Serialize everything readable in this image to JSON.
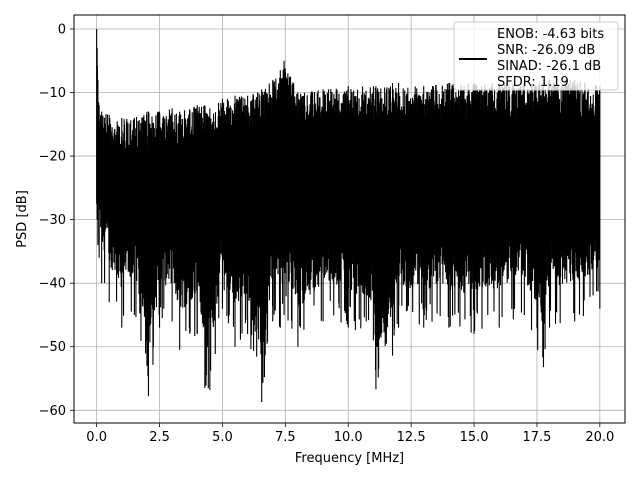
{
  "chart_data": {
    "type": "line",
    "title": "",
    "xlabel": "Frequency [MHz]",
    "ylabel": "PSD [dB]",
    "xlim": [
      -0.9,
      21.0
    ],
    "ylim": [
      -62,
      2.2
    ],
    "xticks": [
      0.0,
      2.5,
      5.0,
      7.5,
      10.0,
      12.5,
      15.0,
      17.5,
      20.0
    ],
    "xtick_labels": [
      "0.0",
      "2.5",
      "5.0",
      "7.5",
      "10.0",
      "12.5",
      "15.0",
      "17.5",
      "20.0"
    ],
    "yticks": [
      0,
      -10,
      -20,
      -30,
      -40,
      -50,
      -60
    ],
    "ytick_labels": [
      "0",
      "−10",
      "−20",
      "−30",
      "−40",
      "−50",
      "−60"
    ],
    "grid": true,
    "legend_position": "upper right",
    "line_color": "#000000",
    "legend": [
      "ENOB: -4.63 bits",
      "SNR: -26.09 dB",
      "SINAD: -26.1 dB",
      "SFDR: 1.19"
    ],
    "series": [
      {
        "color": "#000000",
        "x": [
          0.0,
          0.02,
          0.05,
          0.1,
          0.2,
          0.5,
          1.0,
          1.5,
          2.0,
          2.06,
          2.5,
          3.0,
          3.3,
          4.0,
          4.3,
          4.5,
          5.0,
          5.5,
          6.0,
          6.56,
          7.0,
          7.3,
          7.45,
          8.0,
          9.0,
          10.0,
          11.0,
          11.1,
          11.76,
          12.0,
          13.0,
          14.0,
          15.0,
          16.0,
          17.0,
          17.76,
          18.0,
          19.0,
          20.0
        ],
        "y_max": [
          0.0,
          -3.0,
          -8.0,
          -12.0,
          -13.0,
          -13.5,
          -14.0,
          -14.0,
          -13.0,
          -13.0,
          -13.0,
          -12.5,
          -13.0,
          -12.0,
          -12.0,
          -12.5,
          -11.0,
          -10.5,
          -10.5,
          -9.5,
          -8.0,
          -6.5,
          -5.0,
          -10.0,
          -9.5,
          -9.0,
          -9.0,
          -9.0,
          -8.5,
          -8.5,
          -9.0,
          -8.5,
          -8.5,
          -8.5,
          -8.5,
          -8.0,
          -8.0,
          -8.0,
          -9.0
        ],
        "y_min": [
          -27.5,
          -30.0,
          -34.0,
          -36.0,
          -40.0,
          -43.0,
          -47.0,
          -45.0,
          -53.0,
          -57.8,
          -47.0,
          -46.0,
          -50.5,
          -48.0,
          -56.5,
          -56.8,
          -44.0,
          -50.0,
          -48.0,
          -58.7,
          -46.0,
          -47.0,
          -45.0,
          -50.0,
          -46.0,
          -47.0,
          -49.0,
          -56.7,
          -51.4,
          -47.0,
          -47.0,
          -47.0,
          -48.0,
          -47.0,
          -45.0,
          -53.2,
          -47.0,
          -46.0,
          -44.0
        ]
      }
    ]
  }
}
